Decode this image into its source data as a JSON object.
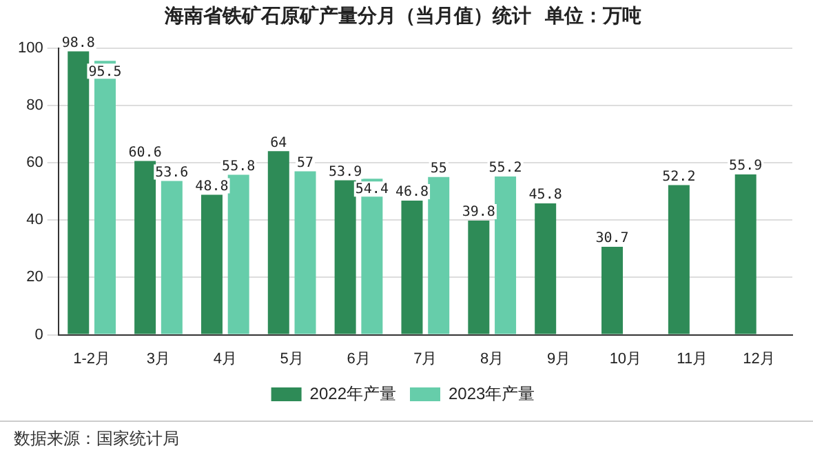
{
  "chart_data": {
    "type": "bar",
    "title": "海南省铁矿石原矿产量分月（当月值）统计  单位：万吨",
    "categories": [
      "1-2月",
      "3月",
      "4月",
      "5月",
      "6月",
      "7月",
      "8月",
      "9月",
      "10月",
      "11月",
      "12月"
    ],
    "series": [
      {
        "name": "2022年产量",
        "color": "#2e8b57",
        "values": [
          98.8,
          60.6,
          48.8,
          64,
          53.9,
          46.8,
          39.8,
          45.8,
          30.7,
          52.2,
          55.9
        ]
      },
      {
        "name": "2023年产量",
        "color": "#66cdaa",
        "values": [
          95.5,
          53.6,
          55.8,
          57,
          54.4,
          55,
          55.2,
          null,
          null,
          null,
          null
        ]
      }
    ],
    "ylim": [
      0,
      100
    ],
    "yticks": [
      0,
      20,
      40,
      60,
      80,
      100
    ],
    "grid": "y",
    "legend": "bottom",
    "data_labels": true,
    "annotations": [
      "数据来源：国家统计局"
    ]
  }
}
